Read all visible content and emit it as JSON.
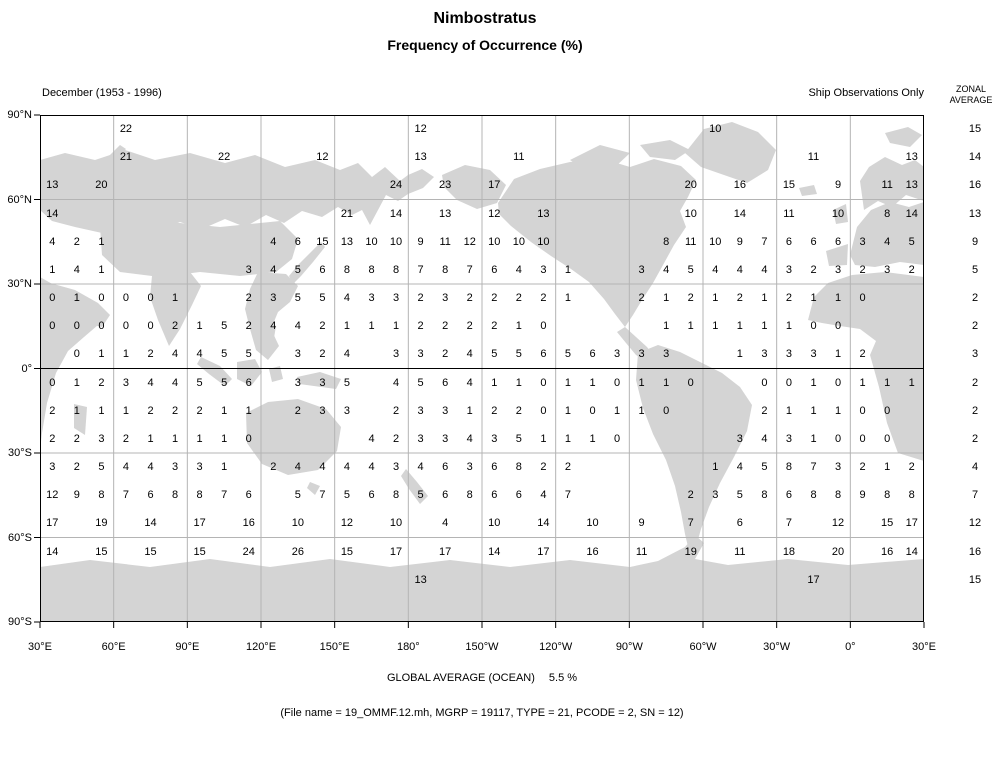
{
  "title": "Nimbostratus",
  "subtitle": "Frequency of Occurrence (%)",
  "period_label": "December (1953 - 1996)",
  "source_label": "Ship Observations Only",
  "zonal_header": {
    "line1": "ZONAL",
    "line2": "AVERAGE"
  },
  "footer": {
    "global_average_label": "GLOBAL AVERAGE (OCEAN)",
    "global_average_value": "5.5 %",
    "file_info": "(File name = 19_OMMF.12.mh, MGRP = 19117, TYPE = 21, PCODE = 2, SN = 12)"
  },
  "chart_data": {
    "type": "heatmap",
    "title": "Nimbostratus — Frequency of Occurrence (%)",
    "subtitle": "December (1953 - 1996), Ship Observations Only",
    "rows": 18,
    "cols": 36,
    "cell_size_deg": 10,
    "lat_range": [
      90,
      -90
    ],
    "lon_start_deg_east": 30,
    "lat_ticks": [
      "90°N",
      "60°N",
      "30°N",
      "0°",
      "30°S",
      "60°S",
      "90°S"
    ],
    "lon_ticks": [
      "30°E",
      "60°E",
      "90°E",
      "120°E",
      "150°E",
      "180°",
      "150°W",
      "120°W",
      "90°W",
      "60°W",
      "30°W",
      "0°",
      "30°E"
    ],
    "values": [
      [
        null,
        null,
        null,
        22,
        null,
        null,
        null,
        null,
        null,
        null,
        null,
        null,
        null,
        null,
        null,
        12,
        null,
        null,
        null,
        null,
        null,
        null,
        null,
        null,
        null,
        null,
        null,
        10,
        null,
        null,
        null,
        null,
        null,
        null,
        null,
        null
      ],
      [
        null,
        null,
        null,
        21,
        null,
        null,
        null,
        22,
        null,
        null,
        null,
        12,
        null,
        null,
        null,
        13,
        null,
        null,
        null,
        11,
        null,
        null,
        null,
        null,
        null,
        null,
        null,
        null,
        null,
        null,
        null,
        11,
        null,
        null,
        null,
        13
      ],
      [
        13,
        null,
        20,
        null,
        null,
        null,
        null,
        null,
        null,
        null,
        null,
        null,
        null,
        null,
        24,
        null,
        23,
        null,
        17,
        null,
        null,
        null,
        null,
        null,
        null,
        null,
        20,
        null,
        16,
        null,
        15,
        null,
        9,
        null,
        11,
        13
      ],
      [
        14,
        null,
        null,
        null,
        null,
        null,
        null,
        null,
        null,
        null,
        null,
        null,
        21,
        null,
        14,
        null,
        13,
        null,
        12,
        null,
        13,
        null,
        null,
        null,
        null,
        null,
        10,
        null,
        14,
        null,
        11,
        null,
        10,
        null,
        8,
        14
      ],
      [
        4,
        2,
        1,
        null,
        null,
        null,
        null,
        null,
        null,
        4,
        6,
        15,
        13,
        10,
        10,
        9,
        11,
        12,
        10,
        10,
        10,
        null,
        null,
        null,
        null,
        8,
        11,
        10,
        9,
        7,
        6,
        6,
        6,
        3,
        4,
        5
      ],
      [
        1,
        4,
        1,
        null,
        null,
        null,
        null,
        null,
        3,
        4,
        5,
        6,
        8,
        8,
        8,
        7,
        8,
        7,
        6,
        4,
        3,
        1,
        null,
        null,
        3,
        4,
        5,
        4,
        4,
        4,
        3,
        2,
        3,
        2,
        3,
        2
      ],
      [
        0,
        1,
        0,
        0,
        0,
        1,
        null,
        null,
        2,
        3,
        5,
        5,
        4,
        3,
        3,
        2,
        3,
        2,
        2,
        2,
        2,
        1,
        null,
        null,
        2,
        1,
        2,
        1,
        2,
        1,
        2,
        1,
        1,
        0,
        null,
        null
      ],
      [
        0,
        0,
        0,
        0,
        0,
        2,
        1,
        5,
        2,
        4,
        4,
        2,
        1,
        1,
        1,
        2,
        2,
        2,
        2,
        1,
        0,
        null,
        null,
        null,
        null,
        1,
        1,
        1,
        1,
        1,
        1,
        0,
        0,
        null,
        null,
        null
      ],
      [
        null,
        0,
        1,
        1,
        2,
        4,
        4,
        5,
        5,
        null,
        3,
        2,
        4,
        null,
        3,
        3,
        2,
        4,
        5,
        5,
        6,
        5,
        6,
        3,
        3,
        3,
        null,
        null,
        1,
        3,
        3,
        3,
        1,
        2,
        null,
        null
      ],
      [
        0,
        1,
        2,
        3,
        4,
        4,
        5,
        5,
        6,
        null,
        3,
        3,
        5,
        null,
        4,
        5,
        6,
        4,
        1,
        1,
        0,
        1,
        1,
        0,
        1,
        1,
        0,
        null,
        null,
        0,
        0,
        1,
        0,
        1,
        1,
        1
      ],
      [
        2,
        1,
        1,
        1,
        2,
        2,
        2,
        1,
        1,
        null,
        2,
        3,
        3,
        null,
        2,
        3,
        3,
        1,
        2,
        2,
        0,
        1,
        0,
        1,
        1,
        0,
        null,
        null,
        null,
        2,
        1,
        1,
        1,
        0,
        0,
        null
      ],
      [
        2,
        2,
        3,
        2,
        1,
        1,
        1,
        1,
        0,
        null,
        null,
        null,
        null,
        4,
        2,
        3,
        3,
        4,
        3,
        5,
        1,
        1,
        1,
        0,
        null,
        null,
        null,
        null,
        3,
        4,
        3,
        1,
        0,
        0,
        0,
        null
      ],
      [
        3,
        2,
        5,
        4,
        4,
        3,
        3,
        1,
        null,
        2,
        4,
        4,
        4,
        4,
        3,
        4,
        6,
        3,
        6,
        8,
        2,
        2,
        null,
        null,
        null,
        null,
        null,
        1,
        4,
        5,
        8,
        7,
        3,
        2,
        1,
        2
      ],
      [
        12,
        9,
        8,
        7,
        6,
        8,
        8,
        7,
        6,
        null,
        5,
        7,
        5,
        6,
        8,
        5,
        6,
        8,
        6,
        6,
        4,
        7,
        null,
        null,
        null,
        null,
        2,
        3,
        5,
        8,
        6,
        8,
        8,
        9,
        8,
        8
      ],
      [
        17,
        null,
        19,
        null,
        14,
        null,
        17,
        null,
        16,
        null,
        10,
        null,
        12,
        null,
        10,
        null,
        4,
        null,
        10,
        null,
        14,
        null,
        10,
        null,
        9,
        null,
        7,
        null,
        6,
        null,
        7,
        null,
        12,
        null,
        15,
        17
      ],
      [
        14,
        null,
        15,
        null,
        15,
        null,
        15,
        null,
        24,
        null,
        26,
        null,
        15,
        null,
        17,
        null,
        17,
        null,
        14,
        null,
        17,
        null,
        16,
        null,
        11,
        null,
        19,
        null,
        11,
        null,
        18,
        null,
        20,
        null,
        16,
        14
      ],
      [
        null,
        null,
        null,
        null,
        null,
        null,
        null,
        null,
        null,
        null,
        null,
        null,
        null,
        null,
        null,
        13,
        null,
        null,
        null,
        null,
        null,
        null,
        null,
        null,
        null,
        null,
        null,
        null,
        null,
        null,
        null,
        17,
        null,
        null,
        null,
        null
      ],
      [
        null,
        null,
        null,
        null,
        null,
        null,
        null,
        null,
        null,
        null,
        null,
        null,
        null,
        null,
        null,
        null,
        null,
        null,
        null,
        null,
        null,
        null,
        null,
        null,
        null,
        null,
        null,
        null,
        null,
        null,
        null,
        null,
        null,
        null,
        null,
        null
      ]
    ],
    "zonal_average": [
      15,
      14,
      16,
      13,
      9,
      5,
      2,
      2,
      3,
      2,
      2,
      2,
      4,
      7,
      12,
      16,
      15,
      null
    ],
    "global_average_pct": 5.5,
    "colors": {
      "land": "#d4d4d4",
      "grid": "#b4b4b4",
      "axis": "#000000"
    }
  }
}
